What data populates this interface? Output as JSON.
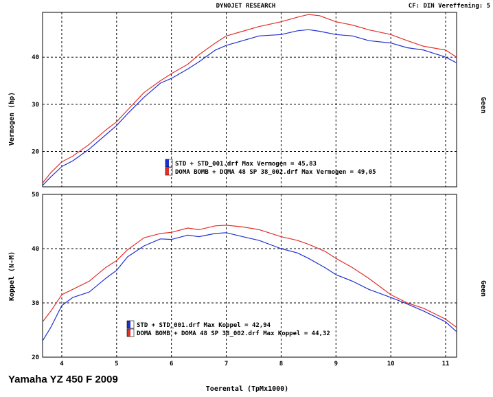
{
  "header": {
    "center": "DYNOJET RESEARCH",
    "right": "CF: DIN  Vereffening: 5"
  },
  "vehicle_title": "Yamaha YZ 450 F 2009",
  "colors": {
    "std": "#1f2fd0",
    "doma": "#e0302a",
    "grid": "#000000",
    "frame": "#000000"
  },
  "chart_data": [
    {
      "type": "line",
      "title": "",
      "ylabel": "Vermogen (hp)",
      "right_label": "Geen",
      "xlabel": "",
      "xlim": [
        3.65,
        11.2
      ],
      "ylim": [
        12.5,
        49.5
      ],
      "yticks": [
        20,
        30,
        40
      ],
      "xticks": [
        4,
        5,
        6,
        7,
        8,
        9,
        10,
        11
      ],
      "grid": true,
      "legend_position": "bottom-center",
      "legend": [
        "STD + STD_001.drf Max Vermogen = 45,83",
        "DOMA BOMB + DOMA 48 SP 38_002.drf Max Vermogen = 49,05"
      ],
      "series": [
        {
          "key": "std",
          "x": [
            3.65,
            3.8,
            4.0,
            4.2,
            4.5,
            4.8,
            5.0,
            5.2,
            5.5,
            5.8,
            6.0,
            6.3,
            6.5,
            6.8,
            7.0,
            7.3,
            7.6,
            8.0,
            8.3,
            8.5,
            8.7,
            9.0,
            9.3,
            9.6,
            10.0,
            10.3,
            10.6,
            11.0,
            11.2
          ],
          "y": [
            12.8,
            14.6,
            16.8,
            18.0,
            20.5,
            23.5,
            25.5,
            28.0,
            31.5,
            34.5,
            35.5,
            37.5,
            39.0,
            41.5,
            42.5,
            43.5,
            44.5,
            44.8,
            45.6,
            45.83,
            45.5,
            44.8,
            44.5,
            43.5,
            43.0,
            42.0,
            41.5,
            40.0,
            38.8
          ]
        },
        {
          "key": "doma",
          "x": [
            3.65,
            3.8,
            4.0,
            4.2,
            4.5,
            4.8,
            5.0,
            5.2,
            5.5,
            5.8,
            6.0,
            6.3,
            6.5,
            6.8,
            7.0,
            7.3,
            7.6,
            8.0,
            8.3,
            8.5,
            8.7,
            9.0,
            9.3,
            9.6,
            10.0,
            10.3,
            10.6,
            11.0,
            11.2
          ],
          "y": [
            13.3,
            15.5,
            17.8,
            19.0,
            21.5,
            24.5,
            26.3,
            28.8,
            32.5,
            35.0,
            36.5,
            38.5,
            40.5,
            43.0,
            44.5,
            45.5,
            46.5,
            47.5,
            48.5,
            49.05,
            48.8,
            47.5,
            46.8,
            45.8,
            44.8,
            43.5,
            42.3,
            41.5,
            40.0
          ]
        }
      ]
    },
    {
      "type": "line",
      "title": "",
      "ylabel": "Koppel (N-M)",
      "right_label": "Geen",
      "xlabel": "Toerental (TpMx1000)",
      "xlim": [
        3.65,
        11.2
      ],
      "ylim": [
        20,
        50
      ],
      "yticks": [
        20,
        30,
        40,
        50
      ],
      "xticks": [
        4,
        5,
        6,
        7,
        8,
        9,
        10,
        11
      ],
      "grid": true,
      "legend_position": "bottom-left",
      "legend": [
        "STD + STD_001.drf Max Koppel = 42,94",
        "DOMA BOMB + DOMA 48 SP 38_002.drf Max Koppel = 44,32"
      ],
      "series": [
        {
          "key": "std",
          "x": [
            3.65,
            3.8,
            4.0,
            4.2,
            4.5,
            4.8,
            5.0,
            5.2,
            5.5,
            5.8,
            6.0,
            6.3,
            6.5,
            6.8,
            7.0,
            7.3,
            7.6,
            8.0,
            8.3,
            8.5,
            8.8,
            9.0,
            9.3,
            9.6,
            10.0,
            10.3,
            10.6,
            11.0,
            11.2
          ],
          "y": [
            23.0,
            25.5,
            29.5,
            31.0,
            32.0,
            34.5,
            36.0,
            38.5,
            40.5,
            41.8,
            41.7,
            42.5,
            42.2,
            42.8,
            42.94,
            42.2,
            41.5,
            40.0,
            39.2,
            38.2,
            36.5,
            35.2,
            34.0,
            32.5,
            31.0,
            29.8,
            28.5,
            26.5,
            24.7
          ]
        },
        {
          "key": "doma",
          "x": [
            3.65,
            3.8,
            4.0,
            4.2,
            4.5,
            4.8,
            5.0,
            5.2,
            5.5,
            5.8,
            6.0,
            6.3,
            6.5,
            6.8,
            7.0,
            7.3,
            7.6,
            8.0,
            8.3,
            8.5,
            8.8,
            9.0,
            9.3,
            9.6,
            10.0,
            10.3,
            10.6,
            11.0,
            11.2
          ],
          "y": [
            26.5,
            28.5,
            31.5,
            32.5,
            34.0,
            36.5,
            37.8,
            39.8,
            42.0,
            42.8,
            43.0,
            43.8,
            43.5,
            44.2,
            44.32,
            44.0,
            43.5,
            42.2,
            41.5,
            40.8,
            39.5,
            38.2,
            36.5,
            34.5,
            31.5,
            30.0,
            29.0,
            27.0,
            25.5
          ]
        }
      ]
    }
  ]
}
